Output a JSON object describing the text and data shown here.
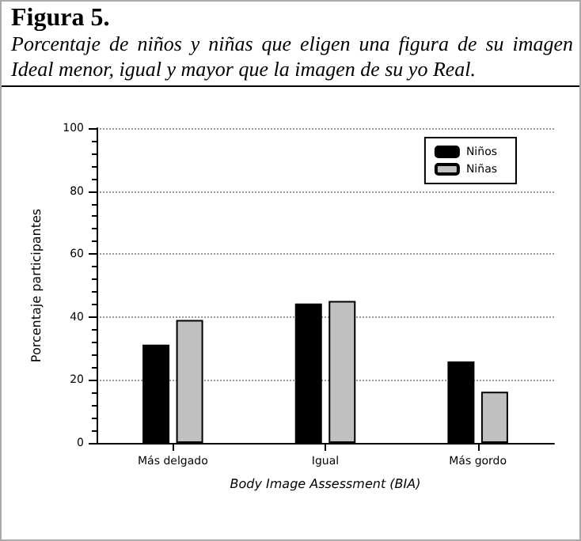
{
  "chart_data": {
    "type": "bar",
    "title": "Figura 5.",
    "subtitle": "Porcentaje de niños y niñas que eligen una figura de su imagen Ideal menor, igual y mayor que la imagen de su yo Real.",
    "categories": [
      "Más delgado",
      "Igual",
      "Más gordo"
    ],
    "series": [
      {
        "name": "Niños",
        "color": "#000000",
        "values": [
          31.2,
          44.3,
          25.9
        ]
      },
      {
        "name": "Niñas",
        "color": "#c0c0c0",
        "values": [
          39.1,
          45.1,
          16.3
        ]
      }
    ],
    "xlabel": "Body Image Assessment (BIA)",
    "ylabel": "Porcentaje participantes",
    "ylim": [
      0,
      100
    ],
    "yticks": [
      0,
      20,
      40,
      60,
      80,
      100
    ],
    "grid": "y",
    "legend": "top right"
  }
}
